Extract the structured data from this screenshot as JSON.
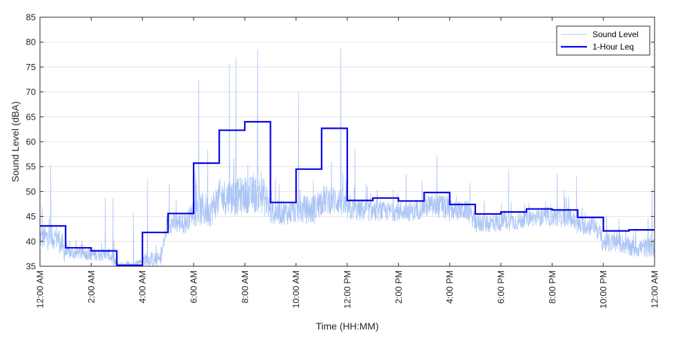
{
  "chart_data": {
    "type": "line",
    "title": "",
    "xlabel": "Time (HH:MM)",
    "ylabel": "Sound Level (dBA)",
    "xlim": [
      0,
      24
    ],
    "ylim": [
      35,
      85
    ],
    "grid": true,
    "legend_position": "top-right",
    "yticks": [
      35,
      40,
      45,
      50,
      55,
      60,
      65,
      70,
      75,
      80,
      85
    ],
    "xticks": [
      {
        "value": 0,
        "label": "12:00 AM"
      },
      {
        "value": 2,
        "label": "2:00 AM"
      },
      {
        "value": 4,
        "label": "4:00 AM"
      },
      {
        "value": 6,
        "label": "6:00 AM"
      },
      {
        "value": 8,
        "label": "8:00 AM"
      },
      {
        "value": 10,
        "label": "10:00 AM"
      },
      {
        "value": 12,
        "label": "12:00 PM"
      },
      {
        "value": 14,
        "label": "2:00 PM"
      },
      {
        "value": 16,
        "label": "4:00 PM"
      },
      {
        "value": 18,
        "label": "6:00 PM"
      },
      {
        "value": 20,
        "label": "8:00 PM"
      },
      {
        "value": 22,
        "label": "10:00 PM"
      },
      {
        "value": 24,
        "label": "12:00 AM"
      }
    ],
    "series": [
      {
        "name": "Sound Level",
        "color": "#a9c4f5",
        "hourly_base": [
          40.5,
          37.5,
          37.2,
          35.3,
          36.2,
          43.5,
          46,
          48.5,
          49,
          45.5,
          46,
          48,
          46,
          45.8,
          45.8,
          46.8,
          46,
          43.5,
          43.8,
          44.5,
          44.7,
          43,
          39.5,
          38.5
        ],
        "hourly_spread": [
          2.5,
          1.3,
          1.3,
          0.6,
          1.5,
          2.2,
          3.5,
          3.8,
          3.8,
          2.5,
          3,
          3,
          2.2,
          2,
          2,
          2.5,
          2,
          2,
          1.8,
          1.8,
          2,
          2,
          2,
          2
        ],
        "spikes": [
          {
            "x": 0.08,
            "y": 47
          },
          {
            "x": 0.42,
            "y": 55.2
          },
          {
            "x": 2.55,
            "y": 48.8
          },
          {
            "x": 2.85,
            "y": 48.8
          },
          {
            "x": 3.65,
            "y": 45.8
          },
          {
            "x": 4.2,
            "y": 52.5
          },
          {
            "x": 5.05,
            "y": 51.5
          },
          {
            "x": 6.2,
            "y": 72.5
          },
          {
            "x": 6.55,
            "y": 58.5
          },
          {
            "x": 7.4,
            "y": 75.8
          },
          {
            "x": 7.65,
            "y": 77
          },
          {
            "x": 8.5,
            "y": 78.5
          },
          {
            "x": 9.2,
            "y": 52.5
          },
          {
            "x": 10.1,
            "y": 70
          },
          {
            "x": 11.75,
            "y": 78.8
          },
          {
            "x": 12.3,
            "y": 58.5
          },
          {
            "x": 14.3,
            "y": 53.5
          },
          {
            "x": 15.5,
            "y": 57.3
          },
          {
            "x": 18.3,
            "y": 54.5
          },
          {
            "x": 20.2,
            "y": 53.5
          },
          {
            "x": 20.95,
            "y": 53
          },
          {
            "x": 23.9,
            "y": 50.5
          }
        ]
      },
      {
        "name": "1-Hour Leq",
        "color": "#0000e6",
        "x": [
          0,
          1,
          2,
          3,
          4,
          5,
          6,
          7,
          8,
          9,
          10,
          11,
          12,
          13,
          14,
          15,
          16,
          17,
          18,
          19,
          20,
          21,
          22,
          23
        ],
        "values": [
          43.1,
          38.7,
          38.1,
          35.2,
          41.8,
          45.6,
          55.7,
          62.3,
          64,
          47.8,
          54.5,
          62.7,
          48.2,
          48.7,
          48.1,
          49.8,
          47.4,
          45.5,
          45.9,
          46.5,
          46.3,
          44.8,
          42.1,
          42.3
        ]
      }
    ]
  }
}
